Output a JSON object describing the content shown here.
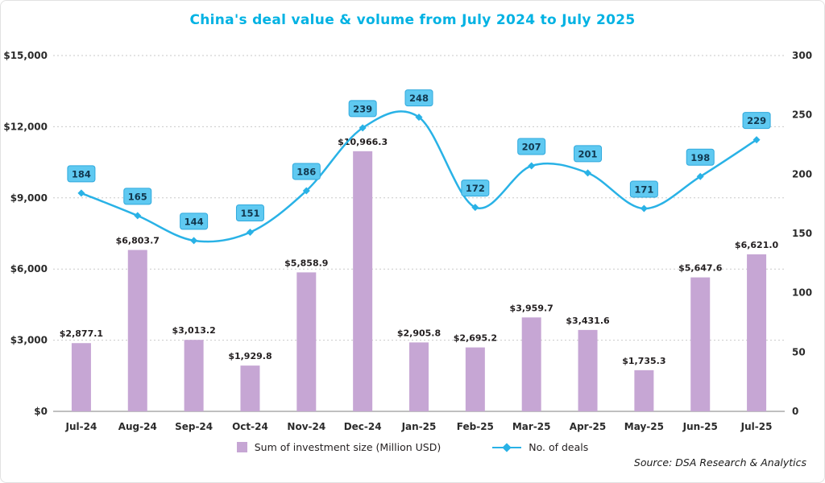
{
  "title": "China's deal value & volume from July 2024 to July 2025",
  "source": "Source: DSA Research & Analytics",
  "legend": {
    "bars": "Sum of investment size (Million USD)",
    "line": "No. of deals"
  },
  "colors": {
    "title": "#00b2e3",
    "bar": "#c6a6d4",
    "line": "#29b2e6",
    "deal_label_bg": "#5fc9f1",
    "deal_label_border": "#2fa9dd",
    "deal_label_text": "#12384f",
    "bar_label_text": "#231f20",
    "axis_text": "#2b2b2b",
    "gridline": "#c9c9c9",
    "axis_line": "#9a9a9a"
  },
  "chart_data": {
    "type": "bar",
    "subtype": "combo-bar-line-dual-axis",
    "title": "China's deal value & volume from July 2024 to July 2025",
    "categories": [
      "Jul-24",
      "Aug-24",
      "Sep-24",
      "Oct-24",
      "Nov-24",
      "Dec-24",
      "Jan-25",
      "Feb-25",
      "Mar-25",
      "Apr-25",
      "May-25",
      "Jun-25",
      "Jul-25"
    ],
    "series": [
      {
        "name": "Sum of investment size (Million USD)",
        "type": "bar",
        "axis": "left",
        "values": [
          2877.1,
          6803.7,
          3013.2,
          1929.8,
          5858.9,
          10966.3,
          2905.8,
          2695.2,
          3959.7,
          3431.6,
          1735.3,
          5647.6,
          6621.0
        ],
        "labels": [
          "$2,877.1",
          "$6,803.7",
          "$3,013.2",
          "$1,929.8",
          "$5,858.9",
          "$10,966.3",
          "$2,905.8",
          "$2,695.2",
          "$3,959.7",
          "$3,431.6",
          "$1,735.3",
          "$5,647.6",
          "$6,621.0"
        ]
      },
      {
        "name": "No. of deals",
        "type": "line",
        "axis": "right",
        "values": [
          184,
          165,
          144,
          151,
          186,
          239,
          248,
          172,
          207,
          201,
          171,
          198,
          229
        ]
      }
    ],
    "left_axis": {
      "min": 0,
      "max": 15000,
      "ticks": [
        "$15,000",
        "$12,000",
        "$9,000",
        "$6,000",
        "$3,000",
        "$0"
      ]
    },
    "right_axis": {
      "min": 0,
      "max": 300,
      "ticks": [
        "300",
        "250",
        "200",
        "150",
        "100",
        "50",
        "0"
      ]
    },
    "grid": "horizontal-dotted",
    "legend_position": "bottom-center"
  }
}
